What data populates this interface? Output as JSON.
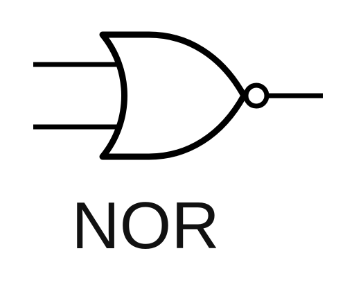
{
  "gate": {
    "label": "NOR",
    "stroke_color": "#000000"
  }
}
